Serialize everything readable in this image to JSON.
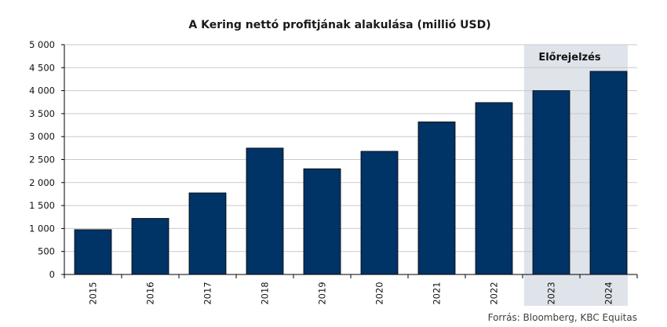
{
  "chart_data": {
    "type": "bar",
    "title": "A Kering nettó profitjának alakulása (millió USD)",
    "categories": [
      "2015",
      "2016",
      "2017",
      "2018",
      "2019",
      "2020",
      "2021",
      "2022",
      "2023",
      "2024"
    ],
    "values": [
      975,
      1220,
      1775,
      2750,
      2300,
      2680,
      3320,
      3740,
      4000,
      4420
    ],
    "ylim": [
      0,
      5000
    ],
    "yticks": [
      0,
      500,
      1000,
      1500,
      2000,
      2500,
      3000,
      3500,
      4000,
      4500,
      5000
    ],
    "ytick_labels": [
      "0",
      "500",
      "1 000",
      "1 500",
      "2 000",
      "2 500",
      "3 000",
      "3 500",
      "4 000",
      "4 500",
      "5 000"
    ],
    "grid": true,
    "bar_color": "#003366",
    "forecast": {
      "label": "Előrejelzés",
      "categories": [
        "2023",
        "2024"
      ],
      "shade_color": "#dfe3ea"
    }
  },
  "source": "Forrás: Bloomberg,  KBC Equitas"
}
